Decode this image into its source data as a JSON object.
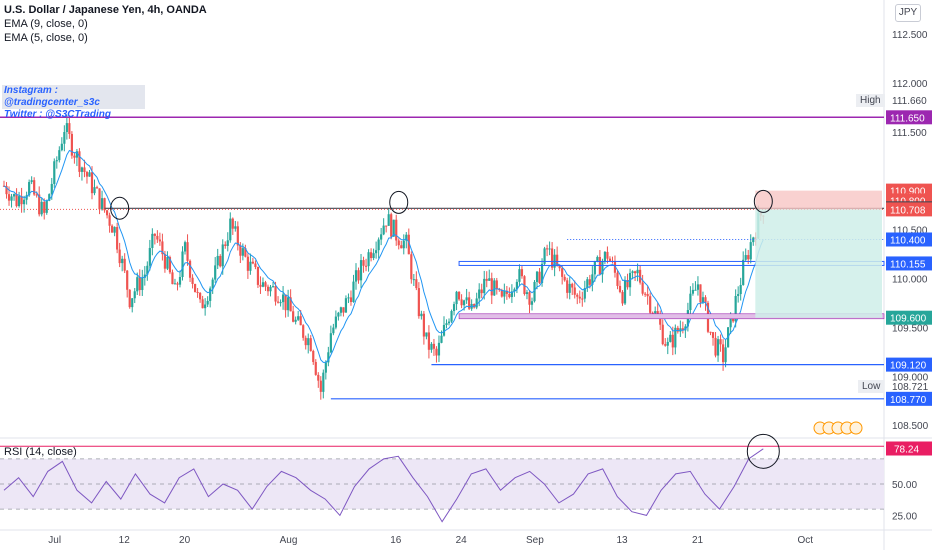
{
  "legend": {
    "title": "U.S. Dollar / Japanese Yen, 4h, OANDA",
    "ema9": "EMA (9, close, 0)",
    "ema5": "EMA (5, close, 0)"
  },
  "social": {
    "instagram": "Instagram : @tradingcenter_s3c",
    "twitter": "Twitter : @S3CTrading"
  },
  "currency_button": "JPY",
  "rsi_legend": "RSI (14, close)",
  "high_label": "High",
  "low_label": "Low",
  "colors": {
    "up": "#26a69a",
    "down": "#ef5350",
    "level_blue": "#2962ff",
    "high_purple": "#9c27b0",
    "rsi_line": "#7e57c2",
    "rsi_band": "#ede7f6",
    "ema": "#2196f3"
  },
  "chart_data": [
    {
      "type": "candlestick",
      "title": "U.S. Dollar / Japanese Yen, 4h, OANDA",
      "x_ticks": [
        "Jul",
        "12",
        "20",
        "Aug",
        "16",
        "24",
        "Sep",
        "13",
        "21",
        "Oct"
      ],
      "y_ticks": [
        "112.500",
        "112.000",
        "111.500",
        "110.500",
        "110.000",
        "109.500",
        "109.000",
        "108.500"
      ],
      "ylim": [
        108.4,
        112.85
      ],
      "price_path": [
        {
          "t": 0,
          "p": 110.95
        },
        {
          "t": 5,
          "p": 110.8
        },
        {
          "t": 10,
          "p": 110.95
        },
        {
          "t": 16,
          "p": 110.65
        },
        {
          "t": 20,
          "p": 111.1
        },
        {
          "t": 24,
          "p": 111.55
        },
        {
          "t": 28,
          "p": 111.3
        },
        {
          "t": 33,
          "p": 111.05
        },
        {
          "t": 38,
          "p": 110.8
        },
        {
          "t": 44,
          "p": 110.5
        },
        {
          "t": 50,
          "p": 109.8
        },
        {
          "t": 56,
          "p": 110.05
        },
        {
          "t": 60,
          "p": 110.45
        },
        {
          "t": 64,
          "p": 110.2
        },
        {
          "t": 68,
          "p": 109.85
        },
        {
          "t": 72,
          "p": 110.3
        },
        {
          "t": 78,
          "p": 109.7
        },
        {
          "t": 84,
          "p": 110.05
        },
        {
          "t": 90,
          "p": 110.55
        },
        {
          "t": 96,
          "p": 110.2
        },
        {
          "t": 102,
          "p": 109.95
        },
        {
          "t": 110,
          "p": 109.85
        },
        {
          "t": 116,
          "p": 109.55
        },
        {
          "t": 122,
          "p": 109.35
        },
        {
          "t": 126,
          "p": 108.85
        },
        {
          "t": 130,
          "p": 109.45
        },
        {
          "t": 136,
          "p": 109.75
        },
        {
          "t": 142,
          "p": 110.1
        },
        {
          "t": 148,
          "p": 110.4
        },
        {
          "t": 152,
          "p": 110.62
        },
        {
          "t": 156,
          "p": 110.45
        },
        {
          "t": 160,
          "p": 110.35
        },
        {
          "t": 164,
          "p": 109.8
        },
        {
          "t": 168,
          "p": 109.35
        },
        {
          "t": 172,
          "p": 109.2
        },
        {
          "t": 176,
          "p": 109.55
        },
        {
          "t": 180,
          "p": 109.9
        },
        {
          "t": 186,
          "p": 109.65
        },
        {
          "t": 192,
          "p": 110.0
        },
        {
          "t": 198,
          "p": 109.75
        },
        {
          "t": 204,
          "p": 110.05
        },
        {
          "t": 210,
          "p": 109.8
        },
        {
          "t": 216,
          "p": 110.3
        },
        {
          "t": 222,
          "p": 110.0
        },
        {
          "t": 228,
          "p": 109.8
        },
        {
          "t": 234,
          "p": 110.05
        },
        {
          "t": 240,
          "p": 110.25
        },
        {
          "t": 246,
          "p": 109.85
        },
        {
          "t": 252,
          "p": 110.05
        },
        {
          "t": 258,
          "p": 109.7
        },
        {
          "t": 264,
          "p": 109.3
        },
        {
          "t": 270,
          "p": 109.55
        },
        {
          "t": 276,
          "p": 109.95
        },
        {
          "t": 282,
          "p": 109.35
        },
        {
          "t": 286,
          "p": 109.2
        },
        {
          "t": 290,
          "p": 109.65
        },
        {
          "t": 294,
          "p": 110.1
        },
        {
          "t": 298,
          "p": 110.45
        },
        {
          "t": 302,
          "p": 110.72
        }
      ],
      "annotations": [
        "High",
        "Low",
        "Instagram : @tradingcenter_s3c",
        "Twitter : @S3CTrading"
      ],
      "levels": [
        {
          "value": 111.65,
          "label": "111.650",
          "color": "#9c27b0",
          "style": "solid"
        },
        {
          "value": 110.9,
          "label": "110.900",
          "color": "#ef5350",
          "style": "none"
        },
        {
          "value": 110.8,
          "label": "110.800",
          "color": "#ef5350",
          "style": "none"
        },
        {
          "value": 110.719,
          "label": "110.719",
          "color": "#434651",
          "style": "solid"
        },
        {
          "value": 110.708,
          "label": "110.708",
          "color": "#ef5350",
          "style": "dotted"
        },
        {
          "value": 110.4,
          "label": "110.400",
          "color": "#2962ff",
          "style": "dotted"
        },
        {
          "value": 110.155,
          "label": "110.155",
          "color": "#2962ff",
          "style": "double"
        },
        {
          "value": 109.6,
          "label": "109.600",
          "color": "#26a69a",
          "style": "none"
        },
        {
          "value": 109.12,
          "label": "109.120",
          "color": "#2962ff",
          "style": "solid"
        },
        {
          "value": 108.77,
          "label": "108.770",
          "color": "#2962ff",
          "style": "solid"
        }
      ],
      "high": {
        "label": "High",
        "value": "111.660"
      },
      "low": {
        "label": "Low",
        "value": "108.721"
      }
    },
    {
      "type": "line",
      "title": "RSI (14, close)",
      "last_value": "78.24",
      "y_ticks": [
        "50.00",
        "25.00"
      ],
      "ylim": [
        15,
        85
      ],
      "bands": [
        70,
        50,
        30
      ],
      "values": [
        45,
        55,
        40,
        60,
        68,
        45,
        35,
        52,
        38,
        58,
        42,
        35,
        55,
        62,
        40,
        50,
        45,
        30,
        48,
        60,
        55,
        45,
        38,
        25,
        48,
        62,
        70,
        72,
        55,
        40,
        20,
        38,
        58,
        62,
        45,
        55,
        60,
        50,
        35,
        42,
        58,
        62,
        40,
        28,
        25,
        45,
        58,
        60,
        42,
        30,
        48,
        70,
        78
      ]
    }
  ]
}
